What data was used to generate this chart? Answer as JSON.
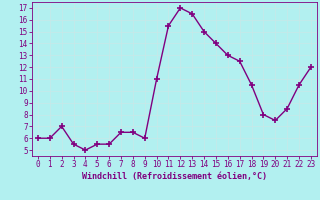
{
  "x": [
    0,
    1,
    2,
    3,
    4,
    5,
    6,
    7,
    8,
    9,
    10,
    11,
    12,
    13,
    14,
    15,
    16,
    17,
    18,
    19,
    20,
    21,
    22,
    23
  ],
  "y": [
    6,
    6,
    7,
    5.5,
    5,
    5.5,
    5.5,
    6.5,
    6.5,
    6,
    11,
    15.5,
    17,
    16.5,
    15,
    14,
    13,
    12.5,
    10.5,
    8,
    7.5,
    8.5,
    10.5,
    12
  ],
  "line_color": "#800080",
  "marker": "+",
  "marker_size": 4,
  "marker_lw": 1.2,
  "bg_color": "#b2f0f0",
  "grid_color": "#c8e8e8",
  "xlabel": "Windchill (Refroidissement éolien,°C)",
  "xlim": [
    -0.5,
    23.5
  ],
  "ylim": [
    4.5,
    17.5
  ],
  "yticks": [
    5,
    6,
    7,
    8,
    9,
    10,
    11,
    12,
    13,
    14,
    15,
    16,
    17
  ],
  "xticks": [
    0,
    1,
    2,
    3,
    4,
    5,
    6,
    7,
    8,
    9,
    10,
    11,
    12,
    13,
    14,
    15,
    16,
    17,
    18,
    19,
    20,
    21,
    22,
    23
  ],
  "tick_color": "#800080",
  "label_fontsize": 6,
  "tick_fontsize": 5.5,
  "spine_color": "#800080",
  "line_width": 1.0,
  "grid_lw": 0.5
}
